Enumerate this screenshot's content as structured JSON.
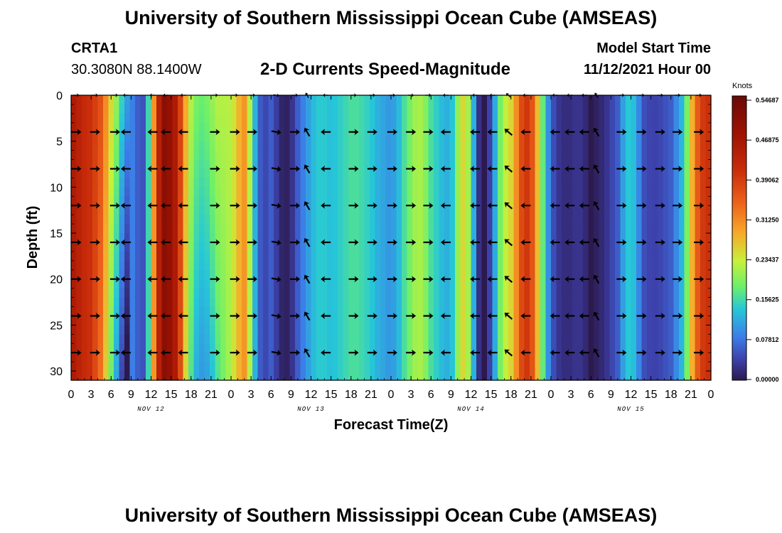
{
  "header": {
    "title": "University of Southern Mississippi Ocean Cube (AMSEAS)",
    "station": "CRTA1",
    "coords": "30.3080N  88.1400W",
    "model_start_label": "Model Start Time",
    "model_start_value": "11/12/2021 Hour 00",
    "footer_title": "University of Southern Mississippi Ocean Cube (AMSEAS)"
  },
  "chart_data": {
    "type": "heatmap",
    "title": "2-D Currents Speed-Magnitude",
    "xlabel": "Forecast Time(Z)",
    "ylabel": "Depth (ft)",
    "x_range": [
      0,
      96
    ],
    "y_range": [
      0,
      31
    ],
    "x_ticks": [
      "0",
      "3",
      "6",
      "9",
      "12",
      "15",
      "18",
      "21",
      "0",
      "3",
      "6",
      "9",
      "12",
      "15",
      "18",
      "21",
      "0",
      "3",
      "6",
      "9",
      "12",
      "15",
      "18",
      "21",
      "0",
      "3",
      "6",
      "9",
      "12",
      "15",
      "18",
      "21",
      "0"
    ],
    "y_ticks": [
      "0",
      "5",
      "10",
      "15",
      "20",
      "25",
      "30"
    ],
    "day_labels": [
      {
        "label": "NOV 12",
        "hour": 12
      },
      {
        "label": "NOV 13",
        "hour": 36
      },
      {
        "label": "NOV 14",
        "hour": 60
      },
      {
        "label": "NOV 15",
        "hour": 84
      }
    ],
    "colorbar": {
      "unit": "Knots",
      "min": 0.0,
      "max": 0.546875,
      "labels": [
        "0.54687",
        "0.46875",
        "0.39062",
        "0.31250",
        "0.23437",
        "0.15625",
        "0.07812",
        "0.00000"
      ]
    },
    "speed_profile": {
      "hours": [
        0,
        1.5,
        3,
        4.5,
        6,
        7,
        8,
        9,
        10,
        11,
        12,
        13,
        14,
        15,
        16,
        17,
        18,
        19,
        20,
        21,
        22,
        23,
        24,
        25,
        26,
        27,
        28,
        29,
        30,
        31,
        32,
        33,
        34,
        35,
        36,
        37,
        38,
        39,
        40,
        41,
        42,
        43,
        44,
        45,
        46,
        47,
        48,
        49,
        50,
        51,
        52,
        53,
        54,
        55,
        56,
        57,
        58,
        59,
        60,
        61,
        62,
        63,
        64,
        65,
        66,
        67,
        68,
        69,
        70,
        71,
        72,
        73,
        74,
        75,
        76,
        77,
        78,
        79,
        80,
        81,
        82,
        83,
        84,
        85,
        86,
        87,
        88,
        89,
        90,
        91,
        92,
        93,
        94,
        95,
        96
      ],
      "knots": [
        0.46,
        0.42,
        0.4,
        0.36,
        0.25,
        0.19,
        0.12,
        0.09,
        0.06,
        0.05,
        0.22,
        0.42,
        0.5,
        0.48,
        0.43,
        0.3,
        0.22,
        0.18,
        0.18,
        0.2,
        0.22,
        0.22,
        0.22,
        0.27,
        0.3,
        0.2,
        0.07,
        0.04,
        0.06,
        0.03,
        0.0,
        0.02,
        0.06,
        0.09,
        0.12,
        0.14,
        0.14,
        0.13,
        0.14,
        0.15,
        0.16,
        0.16,
        0.15,
        0.14,
        0.12,
        0.11,
        0.1,
        0.12,
        0.16,
        0.19,
        0.22,
        0.2,
        0.16,
        0.14,
        0.12,
        0.12,
        0.2,
        0.26,
        0.18,
        0.03,
        0.0,
        0.05,
        0.16,
        0.22,
        0.25,
        0.32,
        0.4,
        0.38,
        0.27,
        0.15,
        0.06,
        0.03,
        0.02,
        0.02,
        0.03,
        0.02,
        0.0,
        0.01,
        0.02,
        0.04,
        0.06,
        0.12,
        0.15,
        0.1,
        0.05,
        0.04,
        0.04,
        0.05,
        0.06,
        0.1,
        0.14,
        0.26,
        0.35,
        0.4,
        0.4,
        0.38,
        0.38
      ]
    },
    "arrow_depths_ft": [
      4,
      8,
      12,
      16,
      20,
      24,
      28
    ],
    "surface_arrow_depth_ft": 0,
    "arrows": [
      {
        "hour": 0.8,
        "dir": 0
      },
      {
        "hour": 3.6,
        "dir": 0
      },
      {
        "hour": 6.6,
        "dir": 0
      },
      {
        "hour": 8.2,
        "dir": 180
      },
      {
        "hour": 12.2,
        "dir": 180
      },
      {
        "hour": 14.2,
        "dir": 180
      },
      {
        "hour": 16.8,
        "dir": 180
      },
      {
        "hour": 21.6,
        "dir": 0
      },
      {
        "hour": 24.6,
        "dir": 0
      },
      {
        "hour": 27.2,
        "dir": 0
      },
      {
        "hour": 30.8,
        "dir": -10
      },
      {
        "hour": 33.6,
        "dir": 0
      },
      {
        "hour": 35.4,
        "dir": 120
      },
      {
        "hour": 38.2,
        "dir": 180
      },
      {
        "hour": 42.4,
        "dir": 0
      },
      {
        "hour": 45.2,
        "dir": 0
      },
      {
        "hour": 48.2,
        "dir": 0
      },
      {
        "hour": 51.0,
        "dir": 0
      },
      {
        "hour": 53.6,
        "dir": 0
      },
      {
        "hour": 56.2,
        "dir": 180
      },
      {
        "hour": 60.6,
        "dir": 180
      },
      {
        "hour": 63.2,
        "dir": 180
      },
      {
        "hour": 65.6,
        "dir": 140
      },
      {
        "hour": 68.2,
        "dir": 180
      },
      {
        "hour": 72.6,
        "dir": 180
      },
      {
        "hour": 74.8,
        "dir": 180
      },
      {
        "hour": 77.0,
        "dir": 180
      },
      {
        "hour": 78.8,
        "dir": 120
      },
      {
        "hour": 82.6,
        "dir": 0
      },
      {
        "hour": 85.6,
        "dir": 0
      },
      {
        "hour": 88.4,
        "dir": 0
      },
      {
        "hour": 91.0,
        "dir": 0
      },
      {
        "hour": 94.2,
        "dir": 0
      }
    ]
  }
}
